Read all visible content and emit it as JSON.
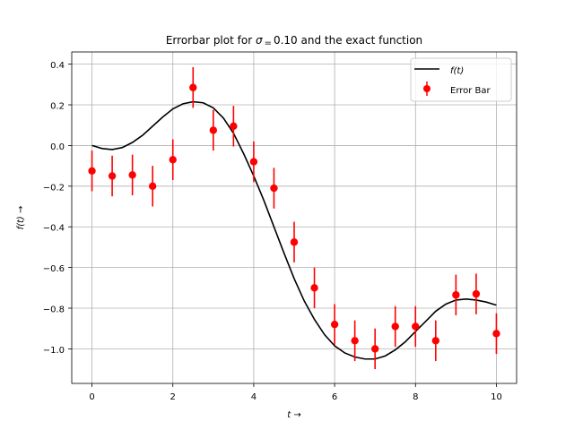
{
  "chart_data": {
    "type": "scatter",
    "title": "Errorbar plot for σ = 0.10 and the exact function",
    "title_parts": {
      "prefix": "Errorbar plot for ",
      "sigma": "σ",
      "equals": "=",
      "value": "0.10",
      "suffix": " and the exact function"
    },
    "xlabel": "t →",
    "ylabel": "f(t) →",
    "xlim": [
      -0.5,
      10.5
    ],
    "ylim": [
      -1.17,
      0.46
    ],
    "xticks": [
      0,
      2,
      4,
      6,
      8,
      10
    ],
    "xtick_labels": [
      "0",
      "2",
      "4",
      "6",
      "8",
      "10"
    ],
    "yticks": [
      -1.0,
      -0.8,
      -0.6,
      -0.4,
      -0.2,
      0.0,
      0.2,
      0.4
    ],
    "ytick_labels": [
      "−1.0",
      "−0.8",
      "−0.6",
      "−0.4",
      "−0.2",
      "0.0",
      "0.2",
      "0.4"
    ],
    "grid": true,
    "legend_position": "top-right",
    "series": [
      {
        "name": "f(t)",
        "kind": "line",
        "color": "#000000",
        "x": [
          0,
          0.25,
          0.5,
          0.75,
          1.0,
          1.25,
          1.5,
          1.75,
          2.0,
          2.25,
          2.5,
          2.75,
          3.0,
          3.25,
          3.5,
          3.75,
          4.0,
          4.25,
          4.5,
          4.75,
          5.0,
          5.25,
          5.5,
          5.75,
          6.0,
          6.25,
          6.5,
          6.75,
          7.0,
          7.25,
          7.5,
          7.75,
          8.0,
          8.25,
          8.5,
          8.75,
          9.0,
          9.25,
          9.5,
          9.75,
          10.0
        ],
        "y": [
          0.0,
          -0.015,
          -0.02,
          -0.01,
          0.015,
          0.05,
          0.095,
          0.14,
          0.18,
          0.205,
          0.215,
          0.21,
          0.185,
          0.135,
          0.06,
          -0.04,
          -0.15,
          -0.27,
          -0.4,
          -0.53,
          -0.655,
          -0.765,
          -0.855,
          -0.93,
          -0.985,
          -1.02,
          -1.04,
          -1.05,
          -1.05,
          -1.035,
          -1.005,
          -0.965,
          -0.915,
          -0.865,
          -0.815,
          -0.78,
          -0.76,
          -0.755,
          -0.76,
          -0.77,
          -0.785
        ]
      },
      {
        "name": "Error Bar",
        "kind": "errorbar",
        "color": "#ff0000",
        "x": [
          0,
          0.5,
          1.0,
          1.5,
          2.0,
          2.5,
          3.0,
          3.5,
          4.0,
          4.5,
          5.0,
          5.5,
          6.0,
          6.5,
          7.0,
          7.5,
          8.0,
          8.5,
          9.0,
          9.5,
          10.0
        ],
        "y": [
          -0.125,
          -0.15,
          -0.145,
          -0.2,
          -0.07,
          0.285,
          0.075,
          0.095,
          -0.08,
          -0.21,
          -0.475,
          -0.7,
          -0.88,
          -0.96,
          -1.0,
          -0.89,
          -0.89,
          -0.96,
          -0.735,
          -0.73,
          -0.925
        ],
        "yerr": 0.1
      }
    ]
  }
}
